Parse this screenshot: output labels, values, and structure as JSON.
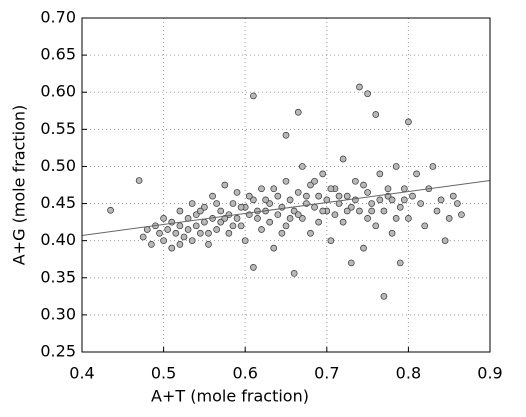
{
  "chart_data": {
    "type": "scatter",
    "xlabel": "A+T (mole fraction)",
    "ylabel": "A+G (mole fraction)",
    "xlim": [
      0.4,
      0.9
    ],
    "ylim": [
      0.25,
      0.7
    ],
    "xticks": [
      0.4,
      0.5,
      0.6,
      0.7,
      0.8,
      0.9
    ],
    "yticks": [
      0.25,
      {
        "value": 0.3,
        "label": "0.30"
      },
      0.35,
      {
        "value": 0.4,
        "label": "0.40"
      },
      0.45,
      {
        "value": 0.5,
        "label": "0.50"
      },
      0.55,
      {
        "value": 0.6,
        "label": "0.60"
      },
      0.65,
      {
        "value": 0.7,
        "label": "0.70"
      }
    ],
    "grid": true,
    "color": "#b8b8b8",
    "fit_line": {
      "x": [
        0.4,
        0.9
      ],
      "y": [
        0.407,
        0.481
      ],
      "color": "#666666"
    },
    "x": [
      0.435,
      0.47,
      0.475,
      0.48,
      0.485,
      0.49,
      0.495,
      0.5,
      0.5,
      0.505,
      0.51,
      0.51,
      0.515,
      0.52,
      0.52,
      0.525,
      0.53,
      0.53,
      0.535,
      0.535,
      0.54,
      0.54,
      0.545,
      0.55,
      0.55,
      0.555,
      0.56,
      0.56,
      0.565,
      0.57,
      0.57,
      0.575,
      0.58,
      0.58,
      0.585,
      0.59,
      0.59,
      0.595,
      0.6,
      0.6,
      0.605,
      0.61,
      0.61,
      0.61,
      0.615,
      0.62,
      0.62,
      0.625,
      0.63,
      0.63,
      0.635,
      0.64,
      0.64,
      0.645,
      0.65,
      0.65,
      0.65,
      0.655,
      0.66,
      0.66,
      0.665,
      0.665,
      0.67,
      0.67,
      0.675,
      0.68,
      0.68,
      0.685,
      0.69,
      0.69,
      0.695,
      0.7,
      0.7,
      0.705,
      0.71,
      0.71,
      0.715,
      0.72,
      0.72,
      0.725,
      0.73,
      0.73,
      0.735,
      0.74,
      0.74,
      0.745,
      0.75,
      0.75,
      0.75,
      0.755,
      0.76,
      0.76,
      0.765,
      0.77,
      0.77,
      0.775,
      0.78,
      0.78,
      0.785,
      0.79,
      0.79,
      0.795,
      0.8,
      0.8,
      0.805,
      0.81,
      0.815,
      0.82,
      0.825,
      0.83,
      0.835,
      0.84,
      0.845,
      0.85,
      0.855,
      0.86,
      0.865,
      0.52,
      0.545,
      0.565,
      0.585,
      0.605,
      0.625,
      0.645,
      0.665,
      0.685,
      0.705,
      0.725,
      0.745,
      0.765,
      0.785,
      0.555,
      0.575,
      0.595,
      0.615,
      0.635,
      0.655,
      0.675,
      0.695,
      0.715,
      0.735,
      0.755,
      0.775,
      0.795
    ],
    "values": [
      0.441,
      0.481,
      0.405,
      0.415,
      0.395,
      0.42,
      0.41,
      0.43,
      0.4,
      0.415,
      0.425,
      0.39,
      0.41,
      0.44,
      0.42,
      0.405,
      0.43,
      0.415,
      0.45,
      0.4,
      0.42,
      0.435,
      0.41,
      0.445,
      0.425,
      0.395,
      0.43,
      0.46,
      0.415,
      0.44,
      0.425,
      0.475,
      0.435,
      0.41,
      0.45,
      0.43,
      0.465,
      0.42,
      0.445,
      0.4,
      0.435,
      0.455,
      0.595,
      0.364,
      0.43,
      0.47,
      0.415,
      0.44,
      0.45,
      0.425,
      0.39,
      0.46,
      0.435,
      0.445,
      0.48,
      0.542,
      0.42,
      0.455,
      0.356,
      0.44,
      0.573,
      0.465,
      0.43,
      0.5,
      0.45,
      0.41,
      0.475,
      0.445,
      0.46,
      0.425,
      0.49,
      0.44,
      0.455,
      0.4,
      0.47,
      0.435,
      0.45,
      0.51,
      0.425,
      0.46,
      0.37,
      0.445,
      0.48,
      0.607,
      0.44,
      0.39,
      0.598,
      0.465,
      0.43,
      0.45,
      0.57,
      0.42,
      0.49,
      0.325,
      0.44,
      0.46,
      0.41,
      0.455,
      0.5,
      0.37,
      0.445,
      0.47,
      0.56,
      0.43,
      0.46,
      0.49,
      0.45,
      0.42,
      0.47,
      0.5,
      0.44,
      0.455,
      0.4,
      0.43,
      0.46,
      0.45,
      0.435,
      0.395,
      0.44,
      0.45,
      0.42,
      0.46,
      0.455,
      0.41,
      0.435,
      0.48,
      0.47,
      0.44,
      0.475,
      0.455,
      0.43,
      0.41,
      0.43,
      0.445,
      0.44,
      0.47,
      0.43,
      0.46,
      0.44,
      0.46,
      0.455,
      0.44,
      0.47,
      0.455
    ]
  }
}
